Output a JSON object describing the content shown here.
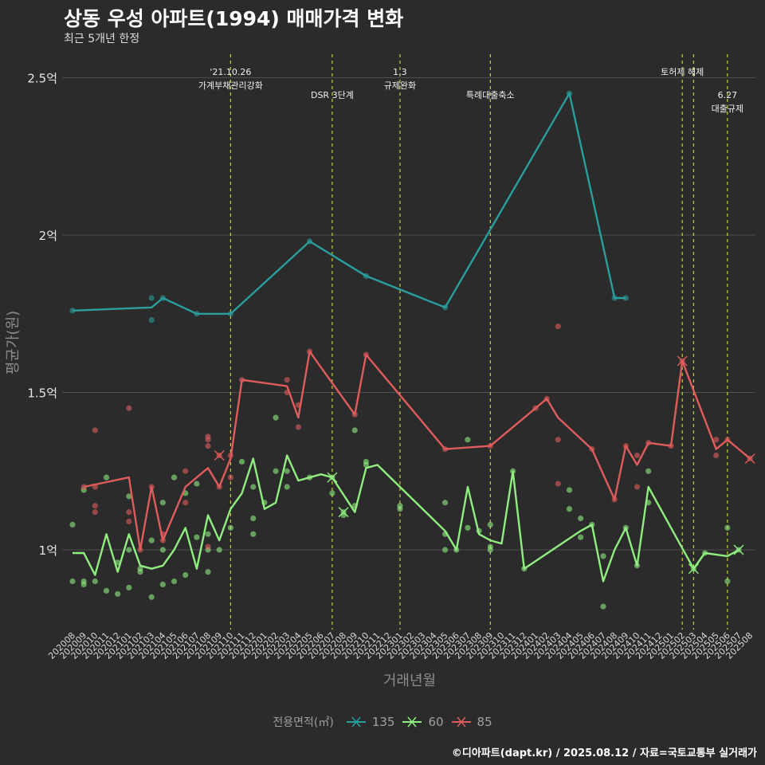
{
  "title": "상동 우성 아파트(1994) 매매가격 변화",
  "subtitle": "최근 5개년 한정",
  "caption": "©디아파트(dapt.kr) / 2025.08.12 / 자료=국토교통부 실거래가",
  "colors": {
    "background": "#2b2b2b",
    "grid": "#4e4e4e",
    "event_line": "#e8e84a",
    "axis_text": "#8c8c8c"
  },
  "legend": {
    "title": "전용면적(㎡)",
    "items": [
      {
        "label": "135",
        "color": "#2a9d9d"
      },
      {
        "label": "60",
        "color": "#90ee80"
      },
      {
        "label": "85",
        "color": "#e05c5c"
      }
    ]
  },
  "chart_data": {
    "type": "line",
    "title": "상동 우성 아파트(1994) 매매가격 변화",
    "subtitle": "최근 5개년 한정",
    "xlabel": "거래년월",
    "ylabel": "평균가(원)",
    "ylim": [
      0.75,
      2.55
    ],
    "yticks": [
      1,
      1.5,
      2,
      2.5
    ],
    "ytick_labels": [
      "1억",
      "1.5억",
      "2억",
      "2.5억"
    ],
    "x_start": "2020-08",
    "x_end": "2025-08",
    "x_ticks": [
      "202008",
      "202009",
      "202010",
      "202011",
      "202012",
      "202101",
      "202102",
      "202103",
      "202104",
      "202105",
      "202106",
      "202107",
      "202108",
      "202109",
      "202110",
      "202111",
      "202112",
      "202201",
      "202202",
      "202203",
      "202204",
      "202205",
      "202206",
      "202207",
      "202208",
      "202209",
      "202210",
      "202211",
      "202212",
      "202301",
      "202302",
      "202303",
      "202304",
      "202305",
      "202306",
      "202307",
      "202308",
      "202309",
      "202310",
      "202311",
      "202312",
      "202401",
      "202402",
      "202403",
      "202404",
      "202405",
      "202406",
      "202407",
      "202408",
      "202409",
      "202410",
      "202411",
      "202412",
      "202501",
      "202502",
      "202503",
      "202504",
      "202505",
      "202506",
      "202507",
      "202508"
    ],
    "grid": true,
    "legend_position": "bottom",
    "events": [
      {
        "month": "2021-10",
        "label": [
          "'21.10.26",
          "가계부채관리강화"
        ],
        "row": 0
      },
      {
        "month": "2022-07",
        "label": [
          "DSR 3단계"
        ],
        "row": 1
      },
      {
        "month": "2023-01",
        "label": [
          "1.3",
          "규제완화"
        ],
        "row": 0
      },
      {
        "month": "2023-09",
        "label": [
          "특례대출축소"
        ],
        "row": 1
      },
      {
        "month": "2025-02",
        "label": [
          "토허제 해제"
        ],
        "row": 0
      },
      {
        "month": "2025-03",
        "label": [],
        "row": 0
      },
      {
        "month": "2025-06",
        "label": [
          "6.27",
          "대출규제"
        ],
        "row": 1
      }
    ],
    "series": [
      {
        "name": "135",
        "color": "#2a9d9d",
        "line": [
          [
            "2020-08",
            1.76
          ],
          [
            "2021-03",
            1.77
          ],
          [
            "2021-04",
            1.8
          ],
          [
            "2021-07",
            1.75
          ],
          [
            "2021-10",
            1.75
          ],
          [
            "2022-05",
            1.98
          ],
          [
            "2022-10",
            1.87
          ],
          [
            "2023-05",
            1.77
          ],
          [
            "2024-04",
            2.45
          ],
          [
            "2024-08",
            1.8
          ],
          [
            "2024-09",
            1.8
          ]
        ],
        "points": [
          [
            "2020-08",
            1.76
          ],
          [
            "2021-03",
            1.8
          ],
          [
            "2021-03",
            1.73
          ],
          [
            "2021-04",
            1.8
          ],
          [
            "2021-07",
            1.75
          ],
          [
            "2021-10",
            1.75
          ],
          [
            "2022-05",
            1.98
          ],
          [
            "2022-10",
            1.87
          ],
          [
            "2023-05",
            1.77
          ],
          [
            "2024-04",
            2.45
          ],
          [
            "2024-08",
            1.8
          ],
          [
            "2024-09",
            1.8
          ]
        ],
        "marks": []
      },
      {
        "name": "60",
        "color": "#90ee80",
        "line": [
          [
            "2020-08",
            0.99
          ],
          [
            "2020-09",
            0.99
          ],
          [
            "2020-10",
            0.92
          ],
          [
            "2020-11",
            1.05
          ],
          [
            "2020-12",
            0.93
          ],
          [
            "2021-01",
            1.05
          ],
          [
            "2021-02",
            0.95
          ],
          [
            "2021-03",
            0.94
          ],
          [
            "2021-04",
            0.95
          ],
          [
            "2021-05",
            1.0
          ],
          [
            "2021-06",
            1.07
          ],
          [
            "2021-07",
            0.94
          ],
          [
            "2021-08",
            1.11
          ],
          [
            "2021-09",
            1.03
          ],
          [
            "2021-10",
            1.13
          ],
          [
            "2021-11",
            1.18
          ],
          [
            "2021-12",
            1.29
          ],
          [
            "2022-01",
            1.13
          ],
          [
            "2022-02",
            1.15
          ],
          [
            "2022-03",
            1.3
          ],
          [
            "2022-04",
            1.22
          ],
          [
            "2022-06",
            1.24
          ],
          [
            "2022-07",
            1.23
          ],
          [
            "2022-09",
            1.12
          ],
          [
            "2022-10",
            1.26
          ],
          [
            "2022-11",
            1.27
          ],
          [
            "2023-05",
            1.06
          ],
          [
            "2023-06",
            1.0
          ],
          [
            "2023-07",
            1.2
          ],
          [
            "2023-08",
            1.05
          ],
          [
            "2023-09",
            1.03
          ],
          [
            "2023-10",
            1.02
          ],
          [
            "2023-11",
            1.25
          ],
          [
            "2023-12",
            0.94
          ],
          [
            "2024-05",
            1.06
          ],
          [
            "2024-06",
            1.08
          ],
          [
            "2024-07",
            0.9
          ],
          [
            "2024-08",
            1.0
          ],
          [
            "2024-09",
            1.07
          ],
          [
            "2024-10",
            0.95
          ],
          [
            "2024-11",
            1.2
          ],
          [
            "2025-03",
            0.94
          ],
          [
            "2025-04",
            0.99
          ],
          [
            "2025-06",
            0.98
          ],
          [
            "2025-07",
            1.0
          ]
        ],
        "points": [
          [
            "2020-08",
            1.08
          ],
          [
            "2020-08",
            0.9
          ],
          [
            "2020-09",
            1.19
          ],
          [
            "2020-09",
            0.9
          ],
          [
            "2020-09",
            0.89
          ],
          [
            "2020-10",
            0.9
          ],
          [
            "2020-11",
            1.23
          ],
          [
            "2020-11",
            0.87
          ],
          [
            "2020-12",
            0.86
          ],
          [
            "2020-12",
            0.96
          ],
          [
            "2021-01",
            1.0
          ],
          [
            "2021-01",
            0.88
          ],
          [
            "2021-01",
            1.17
          ],
          [
            "2021-02",
            0.93
          ],
          [
            "2021-02",
            0.94
          ],
          [
            "2021-03",
            1.03
          ],
          [
            "2021-03",
            0.85
          ],
          [
            "2021-04",
            1.15
          ],
          [
            "2021-04",
            0.89
          ],
          [
            "2021-04",
            1.0
          ],
          [
            "2021-05",
            0.9
          ],
          [
            "2021-05",
            1.23
          ],
          [
            "2021-06",
            1.18
          ],
          [
            "2021-06",
            0.92
          ],
          [
            "2021-07",
            1.21
          ],
          [
            "2021-07",
            1.04
          ],
          [
            "2021-08",
            0.93
          ],
          [
            "2021-08",
            1.05
          ],
          [
            "2021-08",
            1.0
          ],
          [
            "2021-09",
            1.0
          ],
          [
            "2021-10",
            1.07
          ],
          [
            "2021-11",
            1.28
          ],
          [
            "2021-12",
            1.2
          ],
          [
            "2021-12",
            1.1
          ],
          [
            "2021-12",
            1.05
          ],
          [
            "2022-01",
            1.15
          ],
          [
            "2022-02",
            1.25
          ],
          [
            "2022-02",
            1.42
          ],
          [
            "2022-03",
            1.2
          ],
          [
            "2022-03",
            1.25
          ],
          [
            "2022-05",
            1.23
          ],
          [
            "2022-07",
            1.18
          ],
          [
            "2022-07",
            1.23
          ],
          [
            "2022-08",
            1.11
          ],
          [
            "2022-08",
            1.12
          ],
          [
            "2022-09",
            1.38
          ],
          [
            "2022-09",
            1.14
          ],
          [
            "2022-10",
            1.27
          ],
          [
            "2022-10",
            1.28
          ],
          [
            "2023-01",
            1.13
          ],
          [
            "2023-01",
            1.14
          ],
          [
            "2023-05",
            1.15
          ],
          [
            "2023-05",
            1.0
          ],
          [
            "2023-05",
            1.05
          ],
          [
            "2023-06",
            1.0
          ],
          [
            "2023-07",
            1.35
          ],
          [
            "2023-07",
            1.07
          ],
          [
            "2023-08",
            1.06
          ],
          [
            "2023-09",
            1.0
          ],
          [
            "2023-09",
            1.01
          ],
          [
            "2023-09",
            1.08
          ],
          [
            "2023-11",
            1.25
          ],
          [
            "2023-12",
            0.94
          ],
          [
            "2024-04",
            1.19
          ],
          [
            "2024-04",
            1.13
          ],
          [
            "2024-05",
            1.04
          ],
          [
            "2024-05",
            1.1
          ],
          [
            "2024-06",
            1.08
          ],
          [
            "2024-07",
            0.98
          ],
          [
            "2024-07",
            0.82
          ],
          [
            "2024-09",
            1.07
          ],
          [
            "2024-10",
            0.95
          ],
          [
            "2024-11",
            1.15
          ],
          [
            "2024-11",
            1.25
          ],
          [
            "2025-03",
            0.94
          ],
          [
            "2025-04",
            0.99
          ],
          [
            "2025-06",
            1.07
          ],
          [
            "2025-06",
            0.9
          ],
          [
            "2025-07",
            1.0
          ]
        ],
        "marks": [
          [
            "2022-07",
            1.23
          ],
          [
            "2022-08",
            1.12
          ],
          [
            "2025-03",
            0.94
          ],
          [
            "2025-07",
            1.0
          ]
        ]
      },
      {
        "name": "85",
        "color": "#e05c5c",
        "line": [
          [
            "2020-09",
            1.2
          ],
          [
            "2021-01",
            1.23
          ],
          [
            "2021-02",
            1.0
          ],
          [
            "2021-03",
            1.2
          ],
          [
            "2021-04",
            1.03
          ],
          [
            "2021-06",
            1.2
          ],
          [
            "2021-08",
            1.26
          ],
          [
            "2021-09",
            1.2
          ],
          [
            "2021-10",
            1.29
          ],
          [
            "2021-11",
            1.54
          ],
          [
            "2022-03",
            1.52
          ],
          [
            "2022-04",
            1.42
          ],
          [
            "2022-05",
            1.63
          ],
          [
            "2022-09",
            1.43
          ],
          [
            "2022-10",
            1.62
          ],
          [
            "2023-05",
            1.32
          ],
          [
            "2023-09",
            1.33
          ],
          [
            "2024-01",
            1.45
          ],
          [
            "2024-02",
            1.48
          ],
          [
            "2024-03",
            1.42
          ],
          [
            "2024-06",
            1.32
          ],
          [
            "2024-08",
            1.16
          ],
          [
            "2024-09",
            1.33
          ],
          [
            "2024-10",
            1.27
          ],
          [
            "2024-11",
            1.34
          ],
          [
            "2025-01",
            1.33
          ],
          [
            "2025-02",
            1.6
          ],
          [
            "2025-05",
            1.32
          ],
          [
            "2025-06",
            1.35
          ],
          [
            "2025-08",
            1.29
          ]
        ],
        "points": [
          [
            "2020-09",
            1.2
          ],
          [
            "2020-10",
            1.38
          ],
          [
            "2020-10",
            1.14
          ],
          [
            "2020-10",
            1.12
          ],
          [
            "2020-10",
            1.2
          ],
          [
            "2021-01",
            1.45
          ],
          [
            "2021-01",
            1.09
          ],
          [
            "2021-01",
            1.12
          ],
          [
            "2021-02",
            1.0
          ],
          [
            "2021-03",
            1.2
          ],
          [
            "2021-04",
            1.05
          ],
          [
            "2021-04",
            1.03
          ],
          [
            "2021-06",
            1.25
          ],
          [
            "2021-06",
            1.15
          ],
          [
            "2021-08",
            1.36
          ],
          [
            "2021-08",
            1.33
          ],
          [
            "2021-08",
            1.35
          ],
          [
            "2021-08",
            1.01
          ],
          [
            "2021-09",
            1.3
          ],
          [
            "2021-09",
            1.2
          ],
          [
            "2021-10",
            1.23
          ],
          [
            "2021-10",
            1.3
          ],
          [
            "2021-11",
            1.54
          ],
          [
            "2022-03",
            1.54
          ],
          [
            "2022-03",
            1.5
          ],
          [
            "2022-04",
            1.46
          ],
          [
            "2022-04",
            1.39
          ],
          [
            "2022-05",
            1.63
          ],
          [
            "2022-09",
            1.43
          ],
          [
            "2022-10",
            1.62
          ],
          [
            "2023-05",
            1.32
          ],
          [
            "2023-09",
            1.33
          ],
          [
            "2024-01",
            1.45
          ],
          [
            "2024-02",
            1.48
          ],
          [
            "2024-03",
            1.71
          ],
          [
            "2024-03",
            1.35
          ],
          [
            "2024-03",
            1.21
          ],
          [
            "2024-06",
            1.32
          ],
          [
            "2024-08",
            1.16
          ],
          [
            "2024-09",
            1.33
          ],
          [
            "2024-10",
            1.3
          ],
          [
            "2024-10",
            1.2
          ],
          [
            "2024-11",
            1.34
          ],
          [
            "2025-01",
            1.33
          ],
          [
            "2025-02",
            1.6
          ],
          [
            "2025-05",
            1.35
          ],
          [
            "2025-05",
            1.3
          ],
          [
            "2025-06",
            1.35
          ],
          [
            "2025-08",
            1.29
          ]
        ],
        "marks": [
          [
            "2021-09",
            1.3
          ],
          [
            "2025-02",
            1.6
          ],
          [
            "2025-08",
            1.29
          ]
        ]
      }
    ]
  }
}
